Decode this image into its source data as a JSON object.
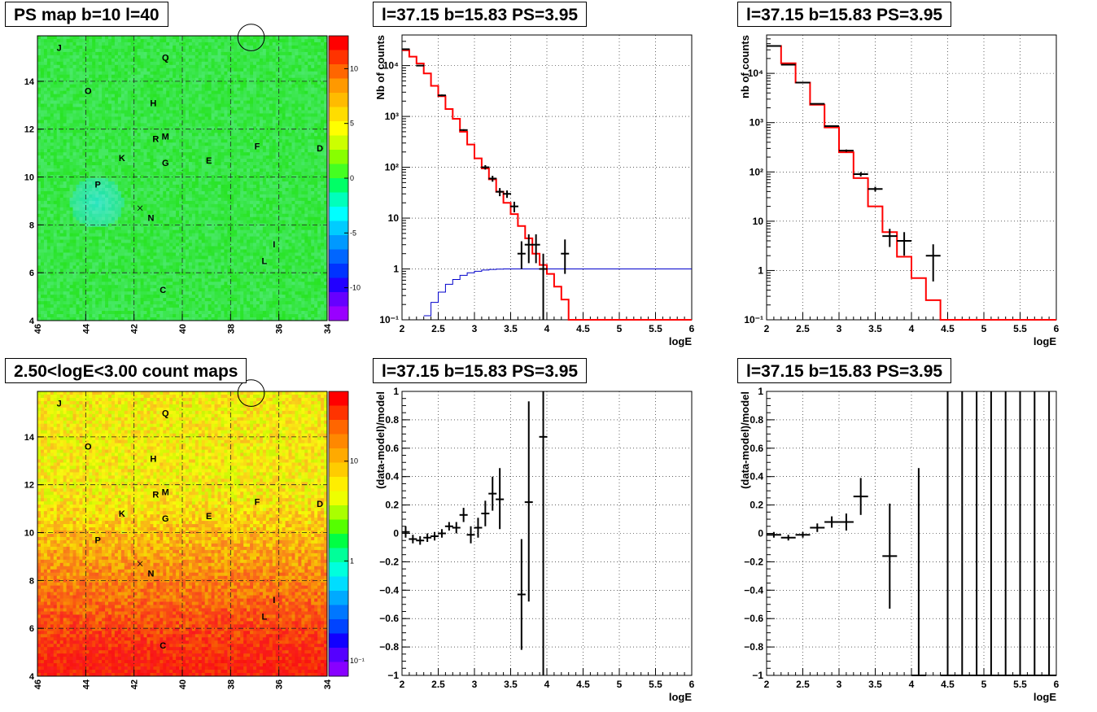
{
  "panels": {
    "ps_map_title": "PS map b=10 l=40",
    "count_map_title": "2.50<logE<3.00 count maps",
    "spec_linear_title": "l=37.15 b=15.83 PS=3.95",
    "spec_binned_title": "l=37.15 b=15.83 PS=3.95",
    "resid_linear_title": "l=37.15 b=15.83 PS=3.95",
    "resid_binned_title": "l=37.15 b=15.83 PS=3.95"
  },
  "maps": {
    "x_ticks": [
      "46",
      "44",
      "42",
      "40",
      "38",
      "36",
      "34"
    ],
    "y_ticks": [
      "4",
      "6",
      "8",
      "10",
      "12",
      "14"
    ],
    "sources": [
      {
        "label": "J",
        "l": 45.1,
        "b": 15.4
      },
      {
        "label": "Q",
        "l": 40.7,
        "b": 15.0
      },
      {
        "label": "O",
        "l": 43.9,
        "b": 13.6
      },
      {
        "label": "H",
        "l": 41.2,
        "b": 13.1
      },
      {
        "label": "R",
        "l": 41.1,
        "b": 11.6
      },
      {
        "label": "M",
        "l": 40.7,
        "b": 11.7
      },
      {
        "label": "F",
        "l": 36.9,
        "b": 11.3
      },
      {
        "label": "D",
        "l": 34.3,
        "b": 11.2
      },
      {
        "label": "K",
        "l": 42.5,
        "b": 10.8
      },
      {
        "label": "G",
        "l": 40.7,
        "b": 10.6
      },
      {
        "label": "E",
        "l": 38.9,
        "b": 10.7
      },
      {
        "label": "P",
        "l": 43.5,
        "b": 9.7
      },
      {
        "label": "N",
        "l": 41.3,
        "b": 8.3
      },
      {
        "label": "I",
        "l": 36.2,
        "b": 7.2
      },
      {
        "label": "L",
        "l": 36.6,
        "b": 6.5
      },
      {
        "label": "C",
        "l": 40.8,
        "b": 5.3
      }
    ],
    "cross_marker": {
      "l": 41.75,
      "b": 8.7
    },
    "circle_marker": {
      "l": 37.15,
      "b": 15.83,
      "r": 0.55
    },
    "ps_colorbar": {
      "ticks": [
        "10",
        "5",
        "0",
        "-5",
        "-10"
      ],
      "tick_values": [
        10,
        5,
        0,
        -5,
        -10
      ],
      "min": -13,
      "max": 13
    },
    "count_colorbar": {
      "ticks": [
        "10",
        "1",
        "10⁻¹"
      ],
      "tick_values": [
        10,
        1,
        0.1
      ],
      "min": 0.07,
      "max": 50
    }
  },
  "colors": {
    "model_line": "#ff0000",
    "aux_line": "#0000cc",
    "data_points": "#000000",
    "ps_map_bg": "#33ee55",
    "count_map_bg": "#f2e020"
  },
  "chart_data": [
    {
      "type": "line",
      "title": "l=37.15 b=15.83 PS=3.95",
      "xlabel": "logE",
      "ylabel": "Nb of counts",
      "xlim": [
        2,
        6
      ],
      "ylim": [
        0.1,
        40000
      ],
      "log_y": true,
      "grid": true,
      "x_ticks": [
        "2",
        "2.5",
        "3",
        "3.5",
        "4",
        "4.5",
        "5",
        "5.5",
        "6"
      ],
      "y_ticks": [
        "10⁻¹",
        "1",
        "10",
        "10²",
        "10³",
        "10⁴"
      ],
      "series": [
        {
          "kind": "step",
          "color": "#ff0000",
          "edges": [
            2.0,
            2.1,
            2.2,
            2.3,
            2.4,
            2.5,
            2.6,
            2.7,
            2.8,
            2.9,
            3.0,
            3.1,
            3.2,
            3.3,
            3.4,
            3.5,
            3.6,
            3.7,
            3.8,
            3.9,
            4.0,
            4.1,
            4.2,
            4.3,
            4.4,
            4.5,
            6.0
          ],
          "values": [
            20000,
            15000,
            11000,
            7000,
            4000,
            2500,
            1400,
            900,
            500,
            280,
            150,
            95,
            58,
            33,
            20,
            12,
            7,
            4,
            2,
            1.2,
            0.8,
            0.45,
            0.25,
            0.1,
            0.1,
            0.1
          ]
        },
        {
          "kind": "step",
          "color": "#0000cc",
          "edges": [
            2.3,
            2.4,
            2.5,
            2.6,
            2.7,
            2.8,
            2.9,
            3.0,
            3.1,
            3.2,
            3.3,
            3.4,
            3.5,
            6.0
          ],
          "values": [
            0.12,
            0.22,
            0.35,
            0.5,
            0.62,
            0.75,
            0.84,
            0.9,
            0.95,
            0.98,
            0.99,
            1.0,
            1.0
          ]
        },
        {
          "kind": "points",
          "color": "#000000",
          "points": [
            {
              "x": 2.05,
              "y": 21000,
              "lo": 20700,
              "hi": 21300
            },
            {
              "x": 2.25,
              "y": 10000,
              "lo": 9800,
              "hi": 10200
            },
            {
              "x": 2.55,
              "y": 2600,
              "lo": 2500,
              "hi": 2700
            },
            {
              "x": 2.85,
              "y": 540,
              "lo": 520,
              "hi": 560
            },
            {
              "x": 3.15,
              "y": 100,
              "lo": 90,
              "hi": 110
            },
            {
              "x": 3.25,
              "y": 60,
              "lo": 52,
              "hi": 68
            },
            {
              "x": 3.35,
              "y": 33,
              "lo": 27,
              "hi": 39
            },
            {
              "x": 3.45,
              "y": 30,
              "lo": 25,
              "hi": 35
            },
            {
              "x": 3.55,
              "y": 17,
              "lo": 13,
              "hi": 21
            },
            {
              "x": 3.65,
              "y": 2,
              "lo": 1,
              "hi": 3.5
            },
            {
              "x": 3.75,
              "y": 3,
              "lo": 1.3,
              "hi": 4.8
            },
            {
              "x": 3.85,
              "y": 3,
              "lo": 1.3,
              "hi": 4.8
            },
            {
              "x": 3.95,
              "y": 1,
              "lo": 0.1,
              "hi": 2
            },
            {
              "x": 4.25,
              "y": 2,
              "lo": 0.8,
              "hi": 3.8
            }
          ]
        }
      ]
    },
    {
      "type": "line",
      "title": "l=37.15 b=15.83 PS=3.95",
      "xlabel": "logE",
      "ylabel": "nb of counts",
      "xlim": [
        2,
        6
      ],
      "ylim": [
        0.1,
        60000
      ],
      "log_y": true,
      "grid": true,
      "x_ticks": [
        "2",
        "2.5",
        "3",
        "3.5",
        "4",
        "4.5",
        "5",
        "5.5",
        "6"
      ],
      "y_ticks": [
        "10⁻¹",
        "1",
        "10",
        "10²",
        "10³",
        "10⁴"
      ],
      "series": [
        {
          "kind": "step",
          "color": "#ff0000",
          "edges": [
            2.0,
            2.2,
            2.4,
            2.6,
            2.8,
            3.0,
            3.2,
            3.4,
            3.6,
            3.8,
            4.0,
            4.2,
            4.4,
            6.0
          ],
          "values": [
            36000,
            16000,
            6500,
            2300,
            800,
            250,
            75,
            20,
            6,
            1.9,
            0.7,
            0.25,
            0.1
          ]
        },
        {
          "kind": "points",
          "color": "#000000",
          "points": [
            {
              "x": 2.1,
              "y": 36000,
              "lo": 35700,
              "hi": 36300
            },
            {
              "x": 2.3,
              "y": 15000,
              "lo": 14800,
              "hi": 15200
            },
            {
              "x": 2.5,
              "y": 6500,
              "lo": 6400,
              "hi": 6600
            },
            {
              "x": 2.7,
              "y": 2400,
              "lo": 2350,
              "hi": 2450
            },
            {
              "x": 2.9,
              "y": 850,
              "lo": 820,
              "hi": 880
            },
            {
              "x": 3.1,
              "y": 270,
              "lo": 255,
              "hi": 285
            },
            {
              "x": 3.3,
              "y": 90,
              "lo": 81,
              "hi": 99
            },
            {
              "x": 3.5,
              "y": 45,
              "lo": 40,
              "hi": 50
            },
            {
              "x": 3.7,
              "y": 5,
              "lo": 3,
              "hi": 7
            },
            {
              "x": 3.9,
              "y": 4,
              "lo": 2,
              "hi": 6
            },
            {
              "x": 4.3,
              "y": 2,
              "lo": 0.6,
              "hi": 3.4
            }
          ]
        }
      ]
    },
    {
      "type": "scatter",
      "title": "l=37.15 b=15.83 PS=3.95",
      "xlabel": "logE",
      "ylabel": "(data-model)/model",
      "xlim": [
        2,
        6
      ],
      "ylim": [
        -1,
        1
      ],
      "grid": true,
      "x_ticks": [
        "2",
        "2.5",
        "3",
        "3.5",
        "4",
        "4.5",
        "5",
        "5.5",
        "6"
      ],
      "y_ticks": [
        "−1",
        "−0.8",
        "−0.6",
        "−0.4",
        "−0.2",
        "0",
        "0.2",
        "0.4",
        "0.6",
        "0.8",
        "1"
      ],
      "points": [
        {
          "x": 2.05,
          "y": 0.01,
          "lo": -0.03,
          "hi": 0.05
        },
        {
          "x": 2.15,
          "y": -0.04,
          "lo": -0.07,
          "hi": -0.01
        },
        {
          "x": 2.25,
          "y": -0.05,
          "lo": -0.08,
          "hi": -0.02
        },
        {
          "x": 2.35,
          "y": -0.03,
          "lo": -0.06,
          "hi": 0.0
        },
        {
          "x": 2.45,
          "y": -0.02,
          "lo": -0.05,
          "hi": 0.01
        },
        {
          "x": 2.55,
          "y": 0.0,
          "lo": -0.03,
          "hi": 0.03
        },
        {
          "x": 2.65,
          "y": 0.05,
          "lo": 0.02,
          "hi": 0.08
        },
        {
          "x": 2.75,
          "y": 0.04,
          "lo": 0.0,
          "hi": 0.08
        },
        {
          "x": 2.85,
          "y": 0.13,
          "lo": 0.08,
          "hi": 0.18
        },
        {
          "x": 2.95,
          "y": -0.01,
          "lo": -0.07,
          "hi": 0.05
        },
        {
          "x": 3.05,
          "y": 0.04,
          "lo": -0.03,
          "hi": 0.11
        },
        {
          "x": 3.15,
          "y": 0.14,
          "lo": 0.05,
          "hi": 0.23
        },
        {
          "x": 3.25,
          "y": 0.28,
          "lo": 0.16,
          "hi": 0.4
        },
        {
          "x": 3.35,
          "y": 0.24,
          "lo": 0.03,
          "hi": 0.46
        },
        {
          "x": 3.65,
          "y": -0.43,
          "lo": -0.82,
          "hi": -0.04
        },
        {
          "x": 3.75,
          "y": 0.22,
          "lo": -0.48,
          "hi": 0.93
        },
        {
          "x": 3.95,
          "y": 0.68,
          "lo": -1.0,
          "hi": 1.0
        }
      ]
    },
    {
      "type": "scatter",
      "title": "l=37.15 b=15.83 PS=3.95",
      "xlabel": "logE",
      "ylabel": "(data-model)/model",
      "xlim": [
        2,
        6
      ],
      "ylim": [
        -1,
        1
      ],
      "grid": true,
      "x_ticks": [
        "2",
        "2.5",
        "3",
        "3.5",
        "4",
        "4.5",
        "5",
        "5.5",
        "6"
      ],
      "y_ticks": [
        "−1",
        "−0.8",
        "−0.6",
        "−0.4",
        "−0.2",
        "0",
        "0.2",
        "0.4",
        "0.6",
        "0.8",
        "1"
      ],
      "points": [
        {
          "x": 2.1,
          "y": -0.01,
          "lo": -0.03,
          "hi": 0.01
        },
        {
          "x": 2.3,
          "y": -0.03,
          "lo": -0.05,
          "hi": -0.01
        },
        {
          "x": 2.5,
          "y": -0.01,
          "lo": -0.03,
          "hi": 0.01
        },
        {
          "x": 2.7,
          "y": 0.04,
          "lo": 0.01,
          "hi": 0.07
        },
        {
          "x": 2.9,
          "y": 0.08,
          "lo": 0.04,
          "hi": 0.12
        },
        {
          "x": 3.1,
          "y": 0.08,
          "lo": 0.02,
          "hi": 0.14
        },
        {
          "x": 3.3,
          "y": 0.26,
          "lo": 0.13,
          "hi": 0.39
        },
        {
          "x": 3.7,
          "y": -0.16,
          "lo": -0.53,
          "hi": 0.21
        },
        {
          "x": 4.1,
          "y": -1.0,
          "lo": -1.0,
          "hi": 0.46
        },
        {
          "x": 4.5,
          "y": -1.0,
          "lo": -1.0,
          "hi": 1.0
        },
        {
          "x": 4.7,
          "y": -1.0,
          "lo": -1.0,
          "hi": 1.0
        },
        {
          "x": 4.9,
          "y": -1.0,
          "lo": -1.0,
          "hi": 1.0
        },
        {
          "x": 5.1,
          "y": -1.0,
          "lo": -1.0,
          "hi": 1.0
        },
        {
          "x": 5.3,
          "y": -1.0,
          "lo": -1.0,
          "hi": 1.0
        },
        {
          "x": 5.5,
          "y": -1.0,
          "lo": -1.0,
          "hi": 1.0
        },
        {
          "x": 5.7,
          "y": -1.0,
          "lo": -1.0,
          "hi": 1.0
        },
        {
          "x": 5.9,
          "y": -1.0,
          "lo": -1.0,
          "hi": 1.0
        }
      ]
    }
  ]
}
